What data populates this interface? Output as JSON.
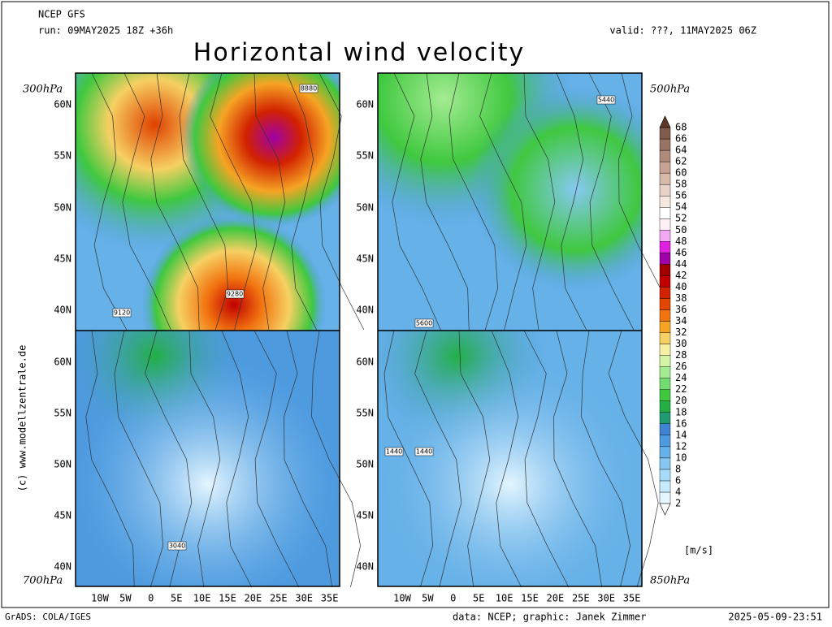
{
  "header": {
    "model": "NCEP GFS",
    "run": "run: 09MAY2025 18Z +36h",
    "valid": "valid: ???, 11MAY2025 06Z",
    "title": "Horizontal wind velocity"
  },
  "panels": [
    {
      "level": "300hPa",
      "contour_labels": [
        "8880",
        "9280",
        "9120"
      ]
    },
    {
      "level": "500hPa",
      "contour_labels": [
        "5440",
        "5600"
      ]
    },
    {
      "level": "700hPa",
      "contour_labels": [
        "3040"
      ]
    },
    {
      "level": "850hPa",
      "contour_labels": [
        "1440",
        "1440"
      ]
    }
  ],
  "lat_labels": [
    "60N",
    "55N",
    "50N",
    "45N",
    "40N"
  ],
  "lon_labels": [
    "10W",
    "5W",
    "0",
    "5E",
    "10E",
    "15E",
    "20E",
    "25E",
    "30E",
    "35E"
  ],
  "colorbar": {
    "labels": [
      2,
      4,
      6,
      8,
      10,
      12,
      14,
      16,
      18,
      20,
      22,
      24,
      26,
      28,
      30,
      32,
      34,
      36,
      38,
      40,
      42,
      44,
      46,
      48,
      50,
      52,
      54,
      56,
      58,
      60,
      62,
      64,
      66,
      68
    ],
    "colors": [
      "#e4f6ff",
      "#c6ebff",
      "#a6dcfa",
      "#86c8f2",
      "#66b1e8",
      "#4e9adf",
      "#3f83d2",
      "#1f9a72",
      "#22b045",
      "#3fc83f",
      "#72dc70",
      "#a4ec92",
      "#d2f6a6",
      "#f6f0a4",
      "#f6d062",
      "#f6a424",
      "#f27410",
      "#e24600",
      "#d22200",
      "#c00000",
      "#a20000",
      "#a000a8",
      "#e020e0",
      "#f2a8f2",
      "#fff0f8",
      "#ffffff",
      "#f6e8e0",
      "#e8d2c8",
      "#d8baaa",
      "#c8a292",
      "#b08a7a",
      "#987262",
      "#805a4a",
      "#603828"
    ],
    "unit": "[m/s]"
  },
  "credit": "(c) www.modellzentrale.de",
  "footer": {
    "software": "GrADS: COLA/IGES",
    "source": "data: NCEP; graphic: Janek Zimmer",
    "timestamp": "2025-05-09-23:51"
  }
}
